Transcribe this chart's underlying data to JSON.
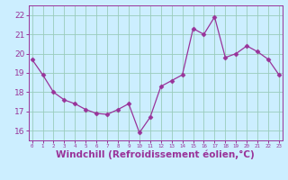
{
  "x": [
    0,
    1,
    2,
    3,
    4,
    5,
    6,
    7,
    8,
    9,
    10,
    11,
    12,
    13,
    14,
    15,
    16,
    17,
    18,
    19,
    20,
    21,
    22,
    23
  ],
  "y": [
    19.7,
    18.9,
    18.0,
    17.6,
    17.4,
    17.1,
    16.9,
    16.85,
    17.1,
    17.4,
    15.9,
    16.7,
    18.3,
    18.6,
    18.9,
    21.3,
    21.0,
    21.9,
    19.8,
    20.0,
    20.4,
    20.1,
    19.7,
    18.9
  ],
  "line_color": "#993399",
  "marker": "D",
  "marker_size": 2.5,
  "bg_color": "#cceeff",
  "grid_color": "#99ccbb",
  "xlabel": "Windchill (Refroidissement éolien,°C)",
  "xlabel_fontsize": 7.5,
  "yticks": [
    16,
    17,
    18,
    19,
    20,
    21,
    22
  ],
  "xticks": [
    0,
    1,
    2,
    3,
    4,
    5,
    6,
    7,
    8,
    9,
    10,
    11,
    12,
    13,
    14,
    15,
    16,
    17,
    18,
    19,
    20,
    21,
    22,
    23
  ],
  "ylim": [
    15.5,
    22.5
  ],
  "xlim": [
    -0.3,
    23.3
  ]
}
